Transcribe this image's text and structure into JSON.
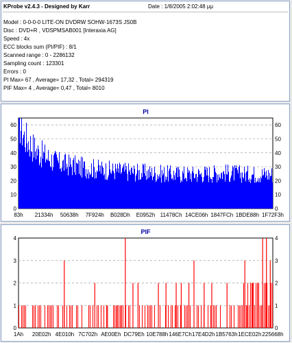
{
  "info": {
    "title": "KProbe v2.4.3 - Designed by Karr",
    "date": "Date : 1/8/2005 2:02:48 μμ",
    "lines": [
      "Model : 0-0-0-0 LITE-ON DVDRW SOHW-1673S JS0B",
      "Disc : DVD+R , VDSPMSAB001 [Interaxia AG]",
      "Speed : 4x",
      "ECC blocks sum (PI/PIF) : 8/1",
      "Scanned range : 0 - 2286132",
      "Sampling count : 123301",
      "Errors : 0",
      "PI Max= 67 , Average= 17,32 , Total= 294319",
      "PIF Max= 4 , Average= 0,47 , Total= 8010"
    ]
  },
  "colors": {
    "pi": "#0000ff",
    "pif": "#ff0000",
    "title": "#0000a0",
    "grid": "#a0a0a0"
  },
  "chart_data": [
    {
      "type": "bar",
      "title": "PI",
      "ylim": [
        0,
        65
      ],
      "yticks": [
        0,
        10,
        20,
        30,
        40,
        50,
        60
      ],
      "xticks": [
        "83h",
        "21334h",
        "50638h",
        "7F924h",
        "B028Dh",
        "E0952h",
        "11478Ch",
        "14CE06h",
        "1847FCh",
        "1BDE88h",
        "1F72F3h"
      ],
      "grid": true,
      "profile": [
        [
          0,
          67
        ],
        [
          0.02,
          55
        ],
        [
          0.05,
          48
        ],
        [
          0.08,
          42
        ],
        [
          0.12,
          38
        ],
        [
          0.16,
          34
        ],
        [
          0.2,
          33
        ],
        [
          0.25,
          31
        ],
        [
          0.3,
          30
        ],
        [
          0.35,
          29
        ],
        [
          0.42,
          28
        ],
        [
          0.5,
          27
        ],
        [
          0.6,
          26
        ],
        [
          0.7,
          26
        ],
        [
          0.8,
          27
        ],
        [
          0.9,
          26
        ],
        [
          1.0,
          26
        ]
      ]
    },
    {
      "type": "bar",
      "title": "PIF",
      "ylim": [
        0,
        4
      ],
      "yticks": [
        0,
        1,
        2,
        3,
        4
      ],
      "xticks": [
        "1Ah",
        "20E02h",
        "4E010h",
        "7C702h",
        "AE00Eh",
        "DC79Eh",
        "10E788h",
        "146E7Ch",
        "17E4D2h",
        "1B5763h",
        "1ECE02h",
        "225668h"
      ],
      "grid": true,
      "spikes": [
        [
          0.18,
          3
        ],
        [
          0.3,
          2
        ],
        [
          0.35,
          1
        ],
        [
          0.385,
          1
        ],
        [
          0.405,
          1
        ],
        [
          0.42,
          4
        ],
        [
          0.45,
          2
        ],
        [
          0.47,
          2
        ],
        [
          0.55,
          2
        ],
        [
          0.58,
          2
        ],
        [
          0.62,
          2
        ],
        [
          0.64,
          2
        ],
        [
          0.67,
          2
        ],
        [
          0.69,
          3
        ],
        [
          0.73,
          2
        ],
        [
          0.76,
          2
        ],
        [
          0.82,
          2
        ],
        [
          0.89,
          3
        ],
        [
          0.9,
          1
        ],
        [
          0.92,
          2
        ],
        [
          0.94,
          2
        ],
        [
          0.96,
          4
        ],
        [
          0.975,
          4
        ],
        [
          0.99,
          3
        ]
      ]
    }
  ]
}
